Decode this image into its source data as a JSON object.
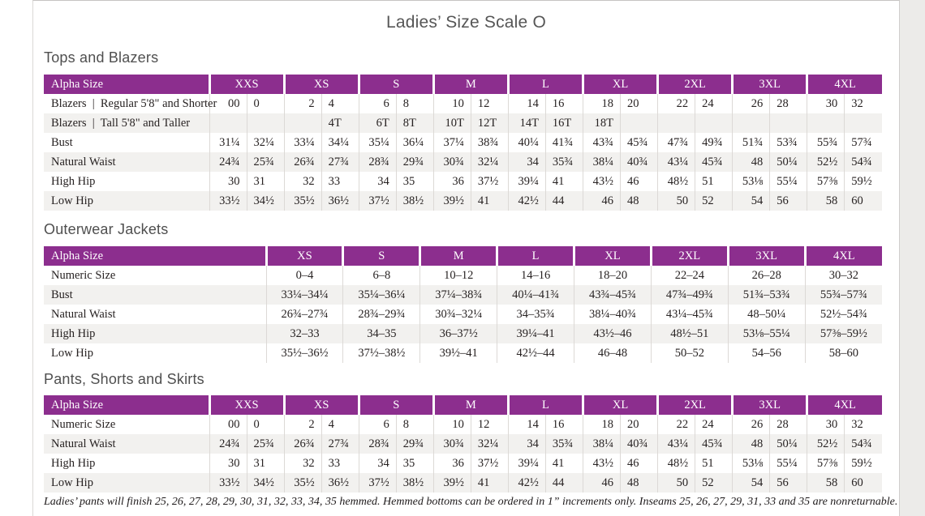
{
  "page": {
    "title": "Ladies’ Size Scale O"
  },
  "colors": {
    "header_purple": "#8c2e8e",
    "row_alt": "#f2f1ef",
    "grid_line": "#dcd9d6",
    "heading_gray": "#4f4f4f"
  },
  "sections": [
    {
      "id": "tops-and-blazers",
      "heading": "Tops and Blazers",
      "table": {
        "type": "paired",
        "label_header": "Alpha Size",
        "size_headers": [
          "XXS",
          "XS",
          "S",
          "M",
          "L",
          "XL",
          "2XL",
          "3XL",
          "4XL"
        ],
        "rows": [
          {
            "label": "Blazers  |  Regular 5'8\" and Shorter",
            "values": [
              "00",
              "0",
              "2",
              "4",
              "6",
              "8",
              "10",
              "12",
              "14",
              "16",
              "18",
              "20",
              "22",
              "24",
              "26",
              "28",
              "30",
              "32"
            ]
          },
          {
            "label": "Blazers  |  Tall 5'8\" and Taller",
            "values": [
              "",
              "",
              "",
              "4T",
              "6T",
              "8T",
              "10T",
              "12T",
              "14T",
              "16T",
              "18T",
              "",
              "",
              "",
              "",
              "",
              "",
              ""
            ]
          },
          {
            "label": "Bust",
            "values": [
              "31¼",
              "32¼",
              "33¼",
              "34¼",
              "35¼",
              "36¼",
              "37¼",
              "38¾",
              "40¼",
              "41¾",
              "43¾",
              "45¾",
              "47¾",
              "49¾",
              "51¾",
              "53¾",
              "55¾",
              "57¾"
            ]
          },
          {
            "label": "Natural Waist",
            "values": [
              "24¾",
              "25¾",
              "26¾",
              "27¾",
              "28¾",
              "29¾",
              "30¾",
              "32¼",
              "34",
              "35¾",
              "38¼",
              "40¾",
              "43¼",
              "45¾",
              "48",
              "50¼",
              "52½",
              "54¾"
            ]
          },
          {
            "label": "High Hip",
            "values": [
              "30",
              "31",
              "32",
              "33",
              "34",
              "35",
              "36",
              "37½",
              "39¼",
              "41",
              "43½",
              "46",
              "48½",
              "51",
              "53⅛",
              "55¼",
              "57⅜",
              "59½"
            ]
          },
          {
            "label": "Low Hip",
            "values": [
              "33½",
              "34½",
              "35½",
              "36½",
              "37½",
              "38½",
              "39½",
              "41",
              "42½",
              "44",
              "46",
              "48",
              "50",
              "52",
              "54",
              "56",
              "58",
              "60"
            ]
          }
        ]
      }
    },
    {
      "id": "outerwear-jackets",
      "heading": "Outerwear Jackets",
      "table": {
        "type": "range",
        "label_header": "Alpha Size",
        "size_headers": [
          "XS",
          "S",
          "M",
          "L",
          "XL",
          "2XL",
          "3XL",
          "4XL"
        ],
        "rows": [
          {
            "label": "Numeric Size",
            "values": [
              "0–4",
              "6–8",
              "10–12",
              "14–16",
              "18–20",
              "22–24",
              "26–28",
              "30–32"
            ]
          },
          {
            "label": "Bust",
            "values": [
              "33¼–34¼",
              "35¼–36¼",
              "37¼–38¾",
              "40¼–41¾",
              "43¾–45¾",
              "47¾–49¾",
              "51¾–53¾",
              "55¾–57¾"
            ]
          },
          {
            "label": "Natural Waist",
            "values": [
              "26¾–27¾",
              "28¾–29¾",
              "30¾–32¼",
              "34–35¾",
              "38¼–40¾",
              "43¼–45¾",
              "48–50¼",
              "52½–54¾"
            ]
          },
          {
            "label": "High Hip",
            "values": [
              "32–33",
              "34–35",
              "36–37½",
              "39¼–41",
              "43½–46",
              "48½–51",
              "53⅛–55¼",
              "57⅜–59½"
            ]
          },
          {
            "label": "Low Hip",
            "values": [
              "35½–36½",
              "37½–38½",
              "39½–41",
              "42½–44",
              "46–48",
              "50–52",
              "54–56",
              "58–60"
            ]
          }
        ]
      }
    },
    {
      "id": "pants-shorts-and-skirts",
      "heading": "Pants, Shorts and Skirts",
      "table": {
        "type": "paired",
        "label_header": "Alpha Size",
        "size_headers": [
          "XXS",
          "XS",
          "S",
          "M",
          "L",
          "XL",
          "2XL",
          "3XL",
          "4XL"
        ],
        "rows": [
          {
            "label": "Numeric Size",
            "values": [
              "00",
              "0",
              "2",
              "4",
              "6",
              "8",
              "10",
              "12",
              "14",
              "16",
              "18",
              "20",
              "22",
              "24",
              "26",
              "28",
              "30",
              "32"
            ]
          },
          {
            "label": "Natural Waist",
            "values": [
              "24¾",
              "25¾",
              "26¾",
              "27¾",
              "28¾",
              "29¾",
              "30¾",
              "32¼",
              "34",
              "35¾",
              "38¼",
              "40¾",
              "43¼",
              "45¾",
              "48",
              "50¼",
              "52½",
              "54¾"
            ]
          },
          {
            "label": "High Hip",
            "values": [
              "30",
              "31",
              "32",
              "33",
              "34",
              "35",
              "36",
              "37½",
              "39¼",
              "41",
              "43½",
              "46",
              "48½",
              "51",
              "53⅛",
              "55¼",
              "57⅜",
              "59½"
            ]
          },
          {
            "label": "Low Hip",
            "values": [
              "33½",
              "34½",
              "35½",
              "36½",
              "37½",
              "38½",
              "39½",
              "41",
              "42½",
              "44",
              "46",
              "48",
              "50",
              "52",
              "54",
              "56",
              "58",
              "60"
            ]
          }
        ]
      }
    }
  ],
  "footnote": "Ladies’ pants will finish 25, 26, 27, 28, 29, 30, 31, 32, 33, 34, 35 hemmed. Hemmed bottoms can be ordered in 1” increments only. Inseams 25, 26, 27, 29, 31, 33 and 35 are nonreturnable."
}
